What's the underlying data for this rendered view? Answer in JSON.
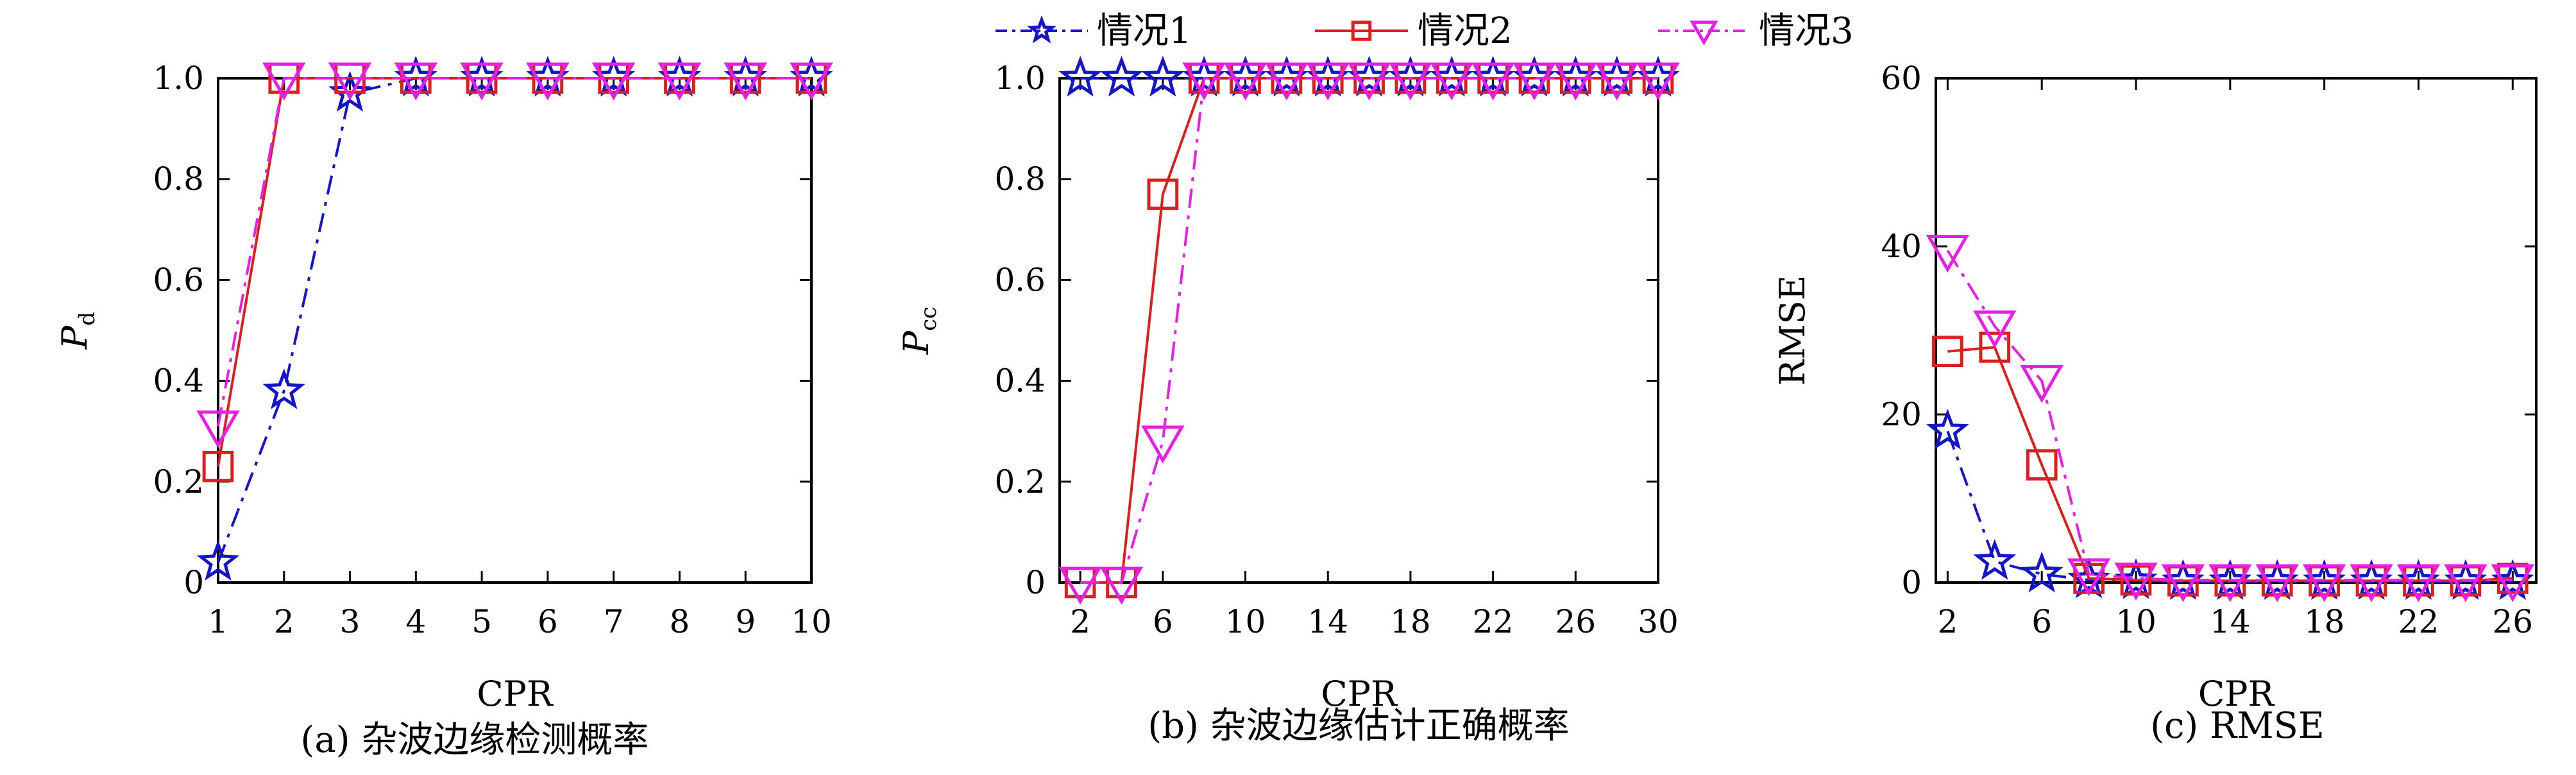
{
  "legend": {
    "placement": "top-center",
    "entries": [
      {
        "label": "情况1",
        "color": "#1414c8",
        "marker": "star",
        "dash": "dashdot"
      },
      {
        "label": "情况2",
        "color": "#dc1e1e",
        "marker": "square",
        "dash": "solid"
      },
      {
        "label": "情况3",
        "color": "#e61ee6",
        "marker": "triangle-down",
        "dash": "dashdot"
      }
    ]
  },
  "chart_data": [
    {
      "type": "line",
      "caption": "(a) 杂波边缘检测概率",
      "xlabel": "CPR",
      "ylabel_main": "P",
      "ylabel_sub": "d",
      "xlim": [
        1,
        10
      ],
      "ylim": [
        0,
        1
      ],
      "xticks": [
        1,
        2,
        3,
        4,
        5,
        6,
        7,
        8,
        9,
        10
      ],
      "yticks": [
        0,
        0.2,
        0.4,
        0.6,
        0.8,
        1.0
      ],
      "ytick_labels": [
        "0",
        "0.2",
        "0.4",
        "0.6",
        "0.8",
        "1.0"
      ],
      "series": [
        {
          "name": "情况1",
          "x": [
            1,
            2,
            3,
            4,
            5,
            6,
            7,
            8,
            9,
            10
          ],
          "y": [
            0.04,
            0.38,
            0.97,
            1,
            1,
            1,
            1,
            1,
            1,
            1
          ]
        },
        {
          "name": "情况2",
          "x": [
            1,
            2,
            3,
            4,
            5,
            6,
            7,
            8,
            9,
            10
          ],
          "y": [
            0.23,
            1,
            1,
            1,
            1,
            1,
            1,
            1,
            1,
            1
          ]
        },
        {
          "name": "情况3",
          "x": [
            1,
            2,
            3,
            4,
            5,
            6,
            7,
            8,
            9,
            10
          ],
          "y": [
            0.31,
            1,
            1,
            1,
            1,
            1,
            1,
            1,
            1,
            1
          ]
        }
      ]
    },
    {
      "type": "line",
      "caption": "(b) 杂波边缘估计正确概率",
      "xlabel": "CPR",
      "ylabel_main": "P",
      "ylabel_sub": "cc",
      "xlim": [
        1,
        30
      ],
      "ylim": [
        0,
        1
      ],
      "xticks": [
        2,
        6,
        10,
        14,
        18,
        22,
        26,
        30
      ],
      "yticks": [
        0,
        0.2,
        0.4,
        0.6,
        0.8,
        1.0
      ],
      "ytick_labels": [
        "0",
        "0.2",
        "0.4",
        "0.6",
        "0.8",
        "1.0"
      ],
      "series": [
        {
          "name": "情况1",
          "x": [
            2,
            4,
            6,
            8,
            10,
            12,
            14,
            16,
            18,
            20,
            22,
            24,
            26,
            28,
            30
          ],
          "y": [
            1,
            1,
            1,
            1,
            1,
            1,
            1,
            1,
            1,
            1,
            1,
            1,
            1,
            1,
            1
          ]
        },
        {
          "name": "情况2",
          "x": [
            2,
            4,
            6,
            8,
            10,
            12,
            14,
            16,
            18,
            20,
            22,
            24,
            26,
            28,
            30
          ],
          "y": [
            0,
            0,
            0.77,
            1,
            1,
            1,
            1,
            1,
            1,
            1,
            1,
            1,
            1,
            1,
            1
          ]
        },
        {
          "name": "情况3",
          "x": [
            2,
            4,
            6,
            8,
            10,
            12,
            14,
            16,
            18,
            20,
            22,
            24,
            26,
            28,
            30
          ],
          "y": [
            0,
            0,
            0.28,
            1,
            1,
            1,
            1,
            1,
            1,
            1,
            1,
            1,
            1,
            1,
            1
          ]
        }
      ]
    },
    {
      "type": "line",
      "caption": "(c) RMSE",
      "xlabel": "CPR",
      "ylabel_main": "RMSE",
      "ylabel_sub": "",
      "xlim": [
        1.5,
        27
      ],
      "ylim": [
        0,
        60
      ],
      "xticks": [
        2,
        6,
        10,
        14,
        18,
        22,
        26
      ],
      "yticks": [
        0,
        20,
        40,
        60
      ],
      "ytick_labels": [
        "0",
        "20",
        "40",
        "60"
      ],
      "series": [
        {
          "name": "情况1",
          "x": [
            2,
            4,
            6,
            8,
            10,
            12,
            14,
            16,
            18,
            20,
            22,
            24,
            26
          ],
          "y": [
            18,
            2.5,
            1,
            0.3,
            0.2,
            0.1,
            0.1,
            0.1,
            0.1,
            0.1,
            0.1,
            0.1,
            0.1
          ]
        },
        {
          "name": "情况2",
          "x": [
            2,
            4,
            6,
            8,
            10,
            12,
            14,
            16,
            18,
            20,
            22,
            24,
            26
          ],
          "y": [
            27.5,
            28,
            14,
            0.5,
            0.3,
            0.2,
            0.2,
            0.2,
            0.2,
            0.2,
            0.2,
            0.2,
            0.5
          ]
        },
        {
          "name": "情况3",
          "x": [
            2,
            4,
            6,
            8,
            10,
            12,
            14,
            16,
            18,
            20,
            22,
            24,
            26
          ],
          "y": [
            39.5,
            30.5,
            24,
            1,
            0.5,
            0.3,
            0.3,
            0.3,
            0.3,
            0.3,
            0.3,
            0.3,
            0.3
          ]
        }
      ]
    }
  ]
}
